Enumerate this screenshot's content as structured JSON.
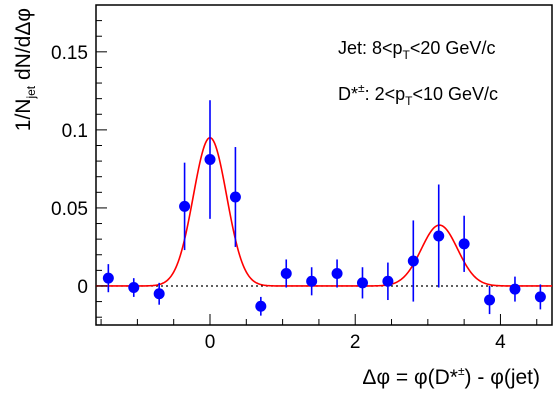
{
  "chart_data": {
    "type": "scatter",
    "title": "",
    "xlabel": "Δφ = φ(D*±) - φ(jet)",
    "ylabel": "1/Njet dN/dΔφ",
    "xlim": [
      -1.57,
      4.71
    ],
    "ylim": [
      -0.025,
      0.18
    ],
    "xticks": [
      0,
      2,
      4
    ],
    "yticks": [
      0,
      0.05,
      0.1,
      0.15
    ],
    "xtick_labels": [
      "0",
      "2",
      "4"
    ],
    "ytick_labels": [
      "0",
      "0.05",
      "0.1",
      "0.15"
    ],
    "grid": false,
    "legend": "none",
    "annotations": {
      "jet": {
        "pre": "Jet: 8<p",
        "sub": "T",
        "post": "<20 GeV/c"
      },
      "dstar": {
        "pre": "D*",
        "sup": "±",
        "mid": ": 2<p",
        "sub": "T",
        "post": "<10 GeV/c"
      }
    },
    "xlabel_parts": {
      "pre": "Δφ = φ(D*",
      "sup": "±",
      "post": ") - φ(jet)"
    },
    "ylabel_parts": {
      "pre": "1/N",
      "sub": "jet",
      "post": " dN/dΔφ"
    },
    "series": [
      {
        "marker": "circle",
        "color": "#0000ff",
        "x": [
          -1.4,
          -1.05,
          -0.7,
          -0.35,
          0.0,
          0.35,
          0.7,
          1.05,
          1.4,
          1.75,
          2.1,
          2.45,
          2.8,
          3.15,
          3.5,
          3.85,
          4.2,
          4.55
        ],
        "y": [
          0.005,
          -0.001,
          -0.005,
          0.051,
          0.081,
          0.057,
          -0.013,
          0.008,
          0.003,
          0.008,
          0.002,
          0.003,
          0.016,
          0.032,
          0.027,
          -0.009,
          -0.002,
          -0.007
        ],
        "err": [
          0.009,
          0.006,
          0.007,
          0.028,
          0.038,
          0.032,
          0.006,
          0.009,
          0.009,
          0.009,
          0.01,
          0.012,
          0.026,
          0.033,
          0.018,
          0.009,
          0.008,
          0.008
        ]
      }
    ],
    "fit": {
      "color": "#ff0000",
      "function": "double gaussian",
      "near_side": {
        "amplitude": 0.095,
        "mean": 0.0,
        "sigma": 0.23
      },
      "away_side": {
        "amplitude": 0.039,
        "mean": 3.16,
        "sigma": 0.25
      },
      "baseline": 0.0
    },
    "reference_line": {
      "y": 0,
      "style": "dotted",
      "color": "#000000"
    }
  }
}
